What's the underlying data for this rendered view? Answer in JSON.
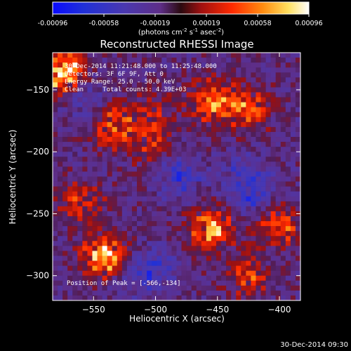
{
  "colorbar": {
    "ticks": [
      "-0.00096",
      "-0.00058",
      "-0.00019",
      "0.00019",
      "0.00058",
      "0.00096"
    ],
    "label_main": "(photons cm",
    "label_exp1": "-2",
    "label_mid": " s",
    "label_exp2": "-1",
    "label_end": " asec",
    "label_exp3": "-2",
    "label_close": ")"
  },
  "annotations": {
    "time_range": "30-Dec-2014 11:21:48.000 to 11:25:48.000",
    "detectors": "Detectors: 3F 6F 9F, Att 0",
    "energy": "Energy Range: 25.0 - 50.0 keV",
    "clean": "Clean     Total counts: 4.39E+03",
    "peak": "Position of Peak = [-566,-134]"
  },
  "footer_timestamp": "30-Dec-2014 09:30",
  "colors": {
    "background": "#000000",
    "text": "#ffffff",
    "low": "#2830c8",
    "mid": "#5a2a90",
    "high": "#ff3300",
    "peak": "#ffff80"
  },
  "chart_data": {
    "type": "heatmap",
    "title": "Reconstructed RHESSI Image",
    "xlabel": "Heliocentric X (arcsec)",
    "ylabel": "Heliocentric Y (arcsec)",
    "xlim": [
      -583,
      -383
    ],
    "ylim": [
      -320,
      -120
    ],
    "x_ticks": [
      -550,
      -500,
      -450,
      -400
    ],
    "y_ticks": [
      -150,
      -200,
      -250,
      -300
    ],
    "colorbar_range": [
      -0.00096,
      0.00096
    ],
    "colormap": "blue-purple-red-yellow-white",
    "peak_position": [
      -566,
      -134
    ],
    "hotspots": [
      {
        "x": -575,
        "y": -135,
        "value": 0.00096
      },
      {
        "x": -535,
        "y": -178,
        "value": 0.0006
      },
      {
        "x": -455,
        "y": -160,
        "value": 0.0006
      },
      {
        "x": -425,
        "y": -165,
        "value": 0.0005
      },
      {
        "x": -540,
        "y": -285,
        "value": 0.0009
      },
      {
        "x": -455,
        "y": -262,
        "value": 0.0007
      },
      {
        "x": -560,
        "y": -240,
        "value": 0.0004
      },
      {
        "x": -400,
        "y": -260,
        "value": 0.0005
      },
      {
        "x": -425,
        "y": -300,
        "value": 0.0004
      },
      {
        "x": -505,
        "y": -195,
        "value": 0.0003
      },
      {
        "x": -500,
        "y": -170,
        "value": 0.0003
      }
    ],
    "coldspots": [
      {
        "x": -480,
        "y": -220,
        "value": -0.0004
      },
      {
        "x": -500,
        "y": -295,
        "value": -0.0004
      },
      {
        "x": -555,
        "y": -160,
        "value": -0.0003
      },
      {
        "x": -430,
        "y": -220,
        "value": -0.0003
      },
      {
        "x": -525,
        "y": -300,
        "value": -0.0003
      },
      {
        "x": -420,
        "y": -235,
        "value": -0.0003
      }
    ]
  }
}
